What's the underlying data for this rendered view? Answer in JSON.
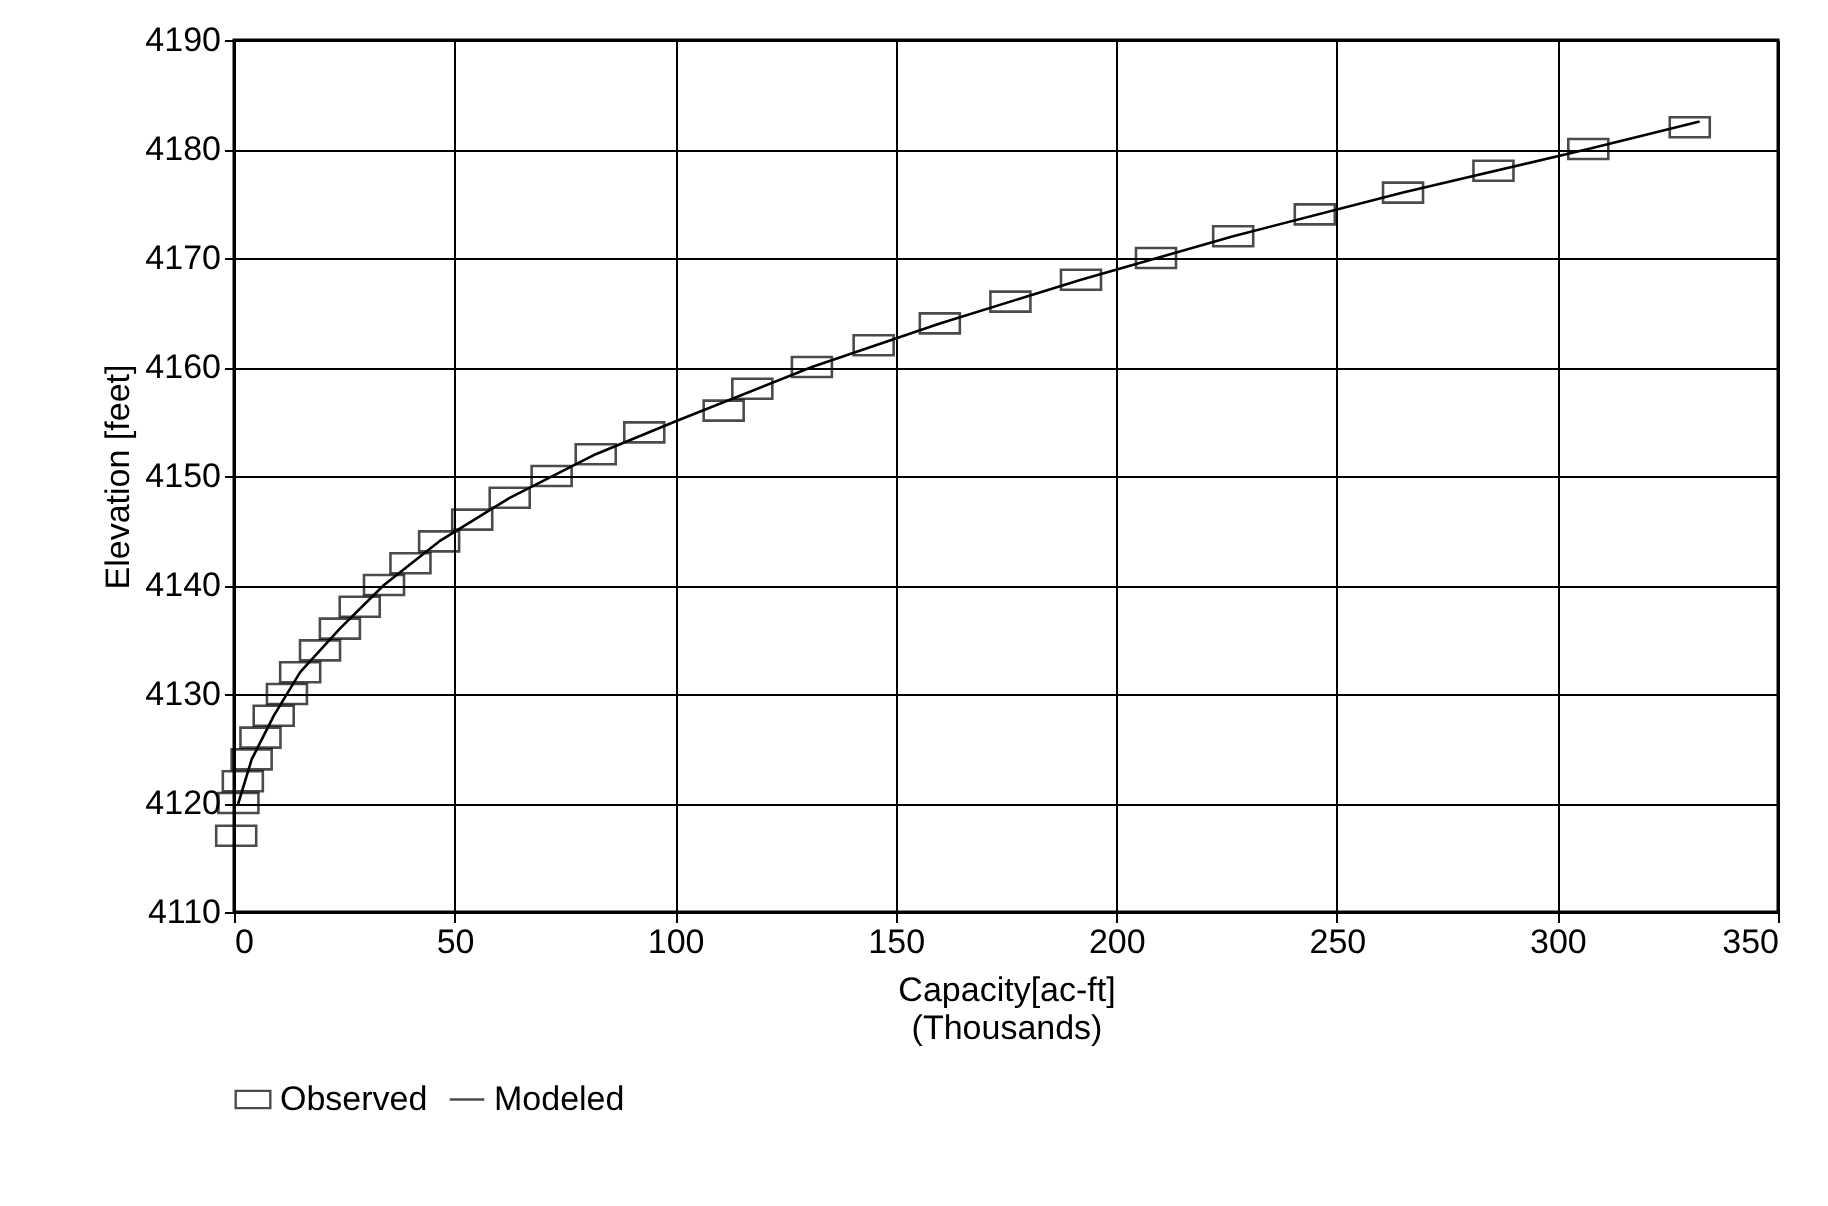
{
  "chart_data": {
    "type": "scatter",
    "xlabel": "Capacity[ac-ft]\n(Thousands)",
    "ylabel": "Elevation [feet]",
    "xlim": [
      0,
      350
    ],
    "xticks": [
      0,
      50,
      100,
      150,
      200,
      250,
      300,
      350
    ],
    "ylim": [
      4110,
      4190
    ],
    "yticks": [
      4110,
      4120,
      4130,
      4140,
      4150,
      4160,
      4170,
      4180,
      4190
    ],
    "grid": true,
    "legend": "bottom",
    "series": [
      {
        "name": "Observed",
        "marker": "square",
        "color": "#000000",
        "x": [
          0.5,
          1,
          2,
          4,
          6,
          9,
          12,
          15,
          19.5,
          24,
          28.5,
          34,
          40,
          46.5,
          54,
          62.5,
          72,
          82,
          93,
          111,
          117.5,
          131,
          145,
          160,
          176,
          192,
          209,
          226.5,
          245,
          265,
          285.5,
          307,
          330
        ],
        "values": [
          4117,
          4120,
          4122,
          4124,
          4126,
          4128,
          4130,
          4132,
          4134,
          4136,
          4138,
          4140,
          4142,
          4144,
          4146,
          4148,
          4150,
          4152,
          4154,
          4156,
          4158,
          4160,
          4162,
          4164,
          4166,
          4168,
          4170,
          4172,
          4174,
          4176,
          4178,
          4180,
          4182
        ]
      },
      {
        "name": "Modeled",
        "type": "line",
        "marker": "none",
        "line_style": "solid",
        "color": "#000000",
        "x": [
          1,
          4,
          9,
          15,
          24,
          34,
          46.5,
          62.5,
          82,
          100,
          131,
          160,
          192,
          226.5,
          265,
          307,
          332
        ],
        "values": [
          4120,
          4124,
          4128,
          4132,
          4136,
          4140,
          4144,
          4148,
          4152,
          4155,
          4160,
          4164,
          4168,
          4172,
          4176,
          4180,
          4182.5
        ]
      }
    ]
  }
}
